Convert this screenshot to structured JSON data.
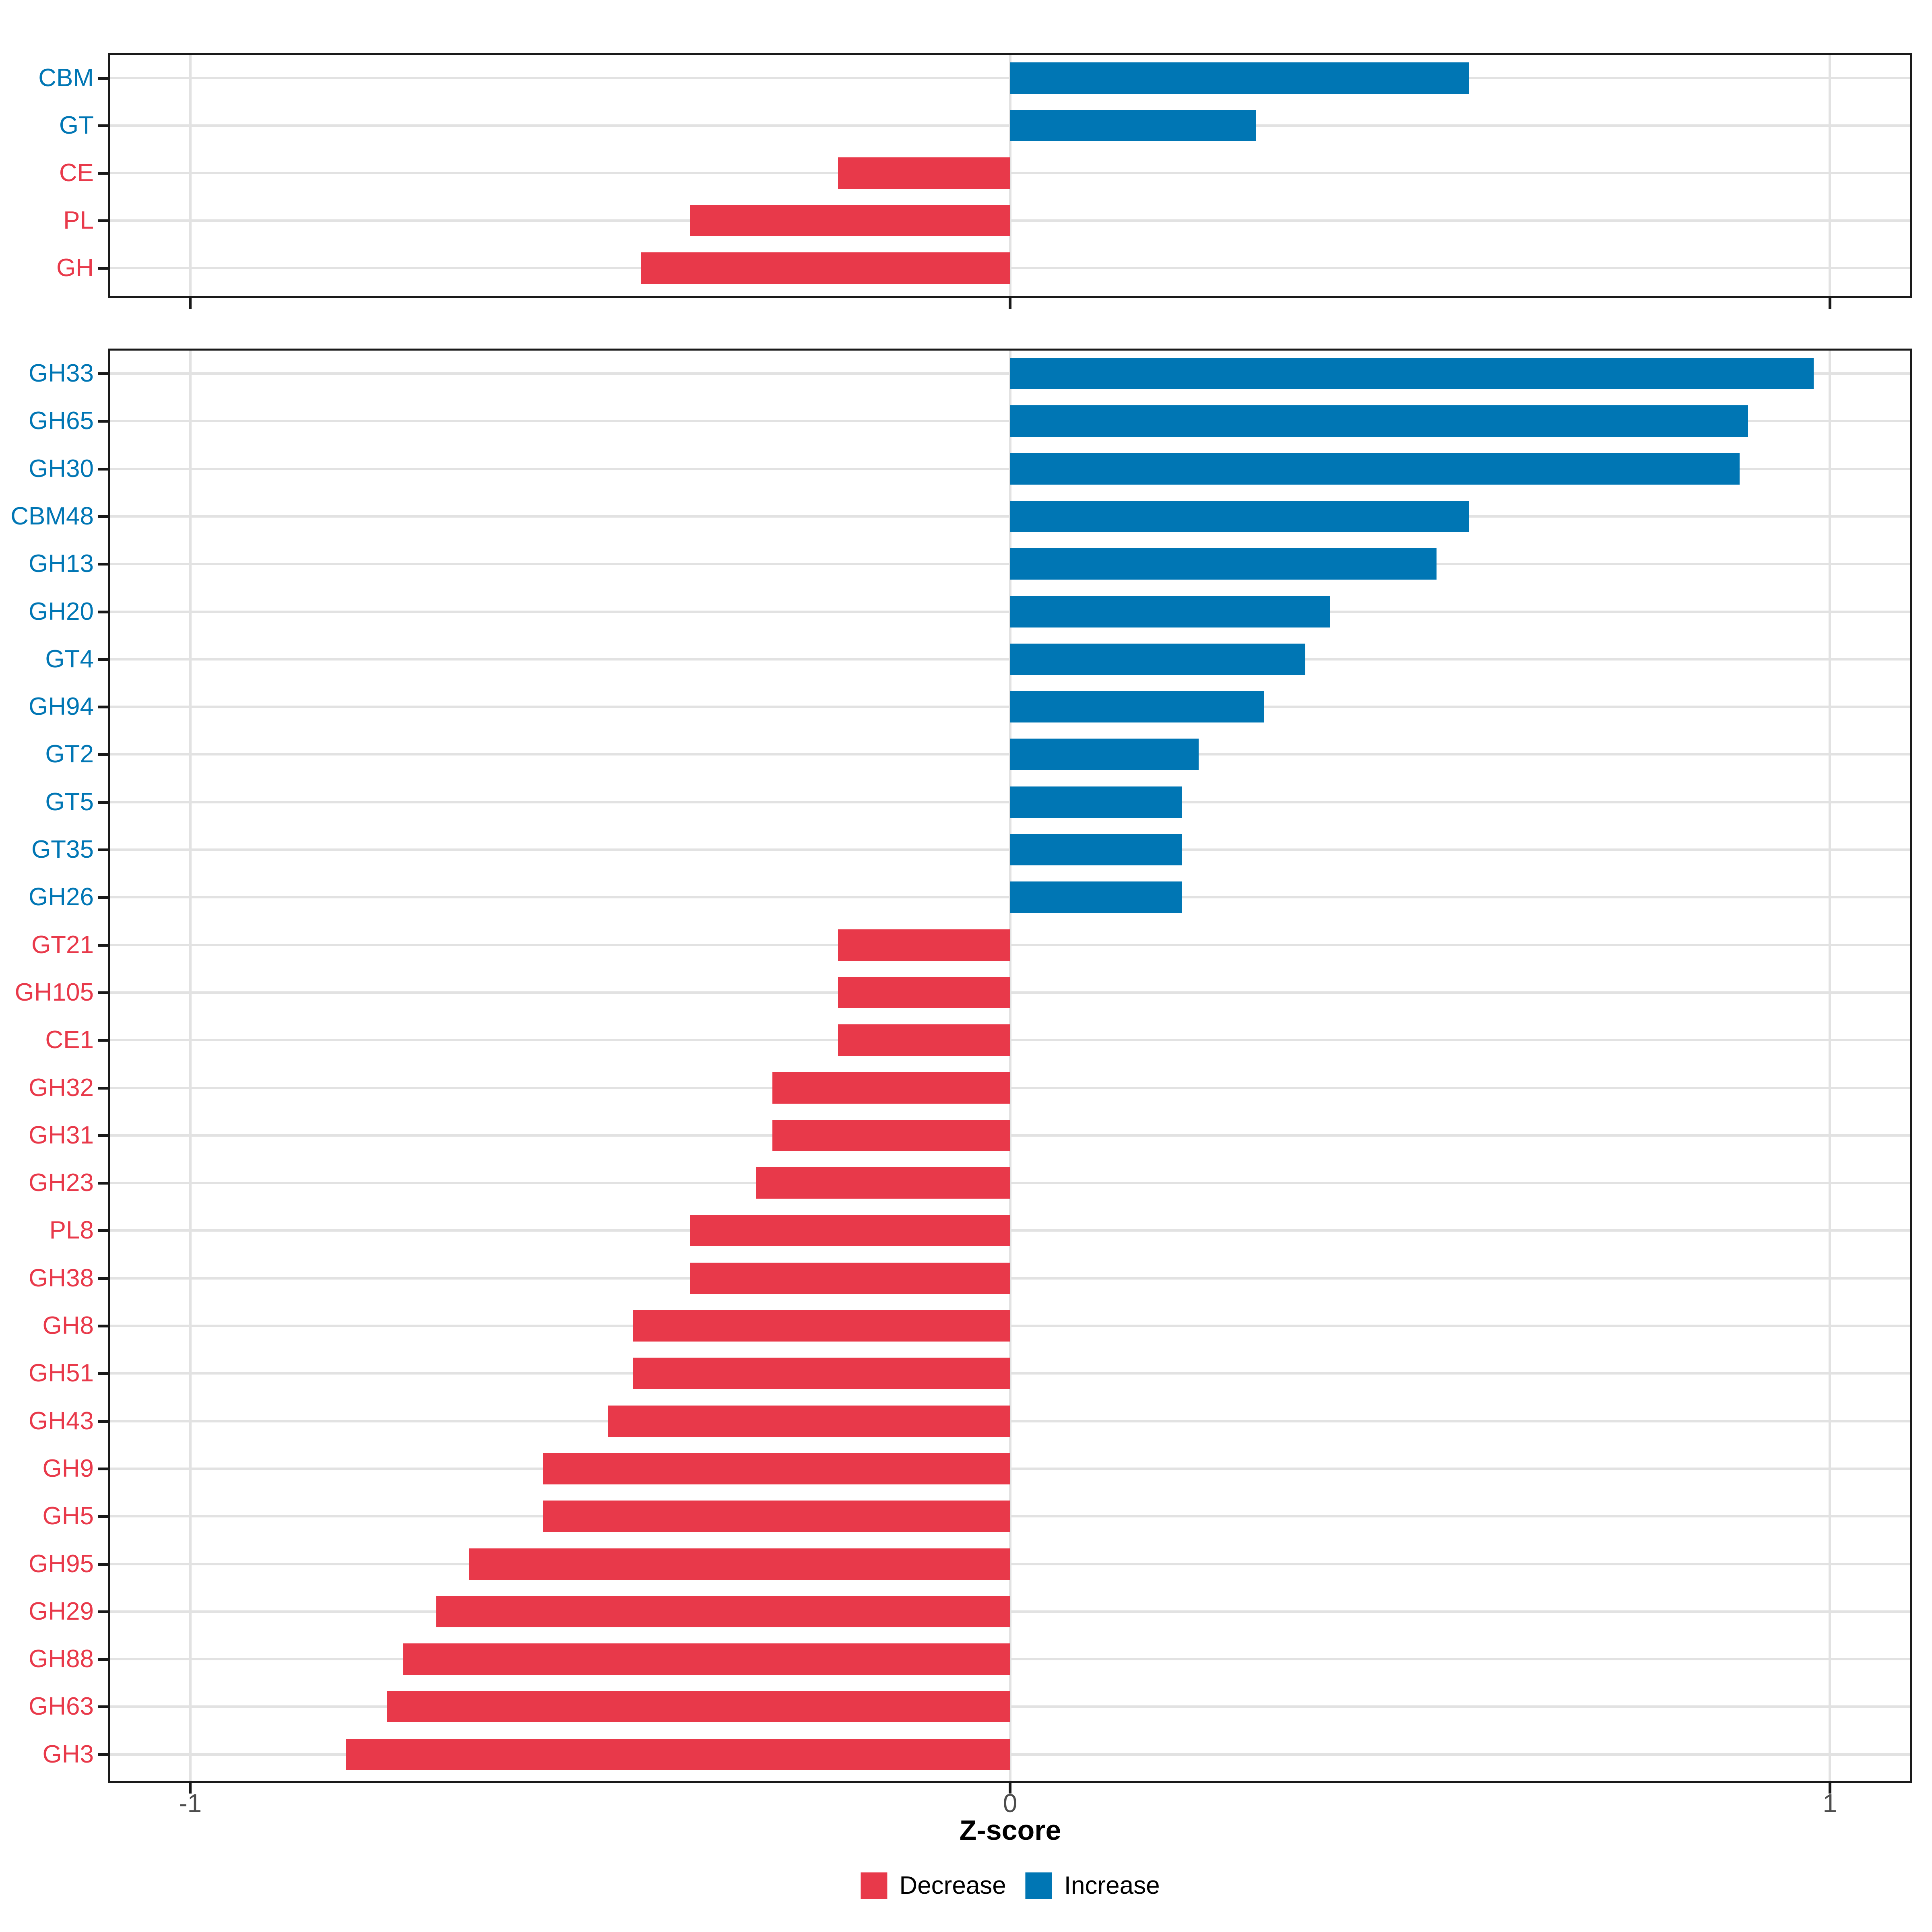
{
  "axis": {
    "title": "Z-score",
    "tick_labels": [
      "-1",
      "0",
      "1"
    ],
    "tick_values": [
      -1,
      0,
      1
    ],
    "xlim": [
      -1.1,
      1.1
    ]
  },
  "legend": {
    "items": [
      {
        "label": "Decrease",
        "color": "#E8394A"
      },
      {
        "label": "Increase",
        "color": "#0076B4"
      }
    ]
  },
  "colors": {
    "decrease": "#E8394A",
    "increase": "#0076B4",
    "gridline": "#E2E2E2",
    "panel_border": "#1A1A1A",
    "axis_text": "#4D4D4D"
  },
  "chart_data": [
    {
      "type": "bar",
      "orientation": "horizontal",
      "panel": "cazyme-classes",
      "title": "",
      "xlabel": "Z-score",
      "ylabel": "",
      "xlim": [
        -1.1,
        1.1
      ],
      "xticks": [
        -1,
        0,
        1
      ],
      "grid": true,
      "legend_position": "bottom",
      "categories": [
        "CBM",
        "GT",
        "CE",
        "PL",
        "GH"
      ],
      "values": [
        0.56,
        0.3,
        -0.21,
        -0.39,
        -0.45
      ],
      "directions": [
        "Increase",
        "Increase",
        "Decrease",
        "Decrease",
        "Decrease"
      ]
    },
    {
      "type": "bar",
      "orientation": "horizontal",
      "panel": "cazyme-families",
      "title": "",
      "xlabel": "Z-score",
      "ylabel": "",
      "xlim": [
        -1.1,
        1.1
      ],
      "xticks": [
        -1,
        0,
        1
      ],
      "grid": true,
      "legend_position": "bottom",
      "categories": [
        "GH33",
        "GH65",
        "GH30",
        "CBM48",
        "GH13",
        "GH20",
        "GT4",
        "GH94",
        "GT2",
        "GT5",
        "GT35",
        "GH26",
        "GT21",
        "GH105",
        "CE1",
        "GH32",
        "GH31",
        "GH23",
        "PL8",
        "GH38",
        "GH8",
        "GH51",
        "GH43",
        "GH9",
        "GH5",
        "GH95",
        "GH29",
        "GH88",
        "GH63",
        "GH3"
      ],
      "values": [
        0.98,
        0.9,
        0.89,
        0.56,
        0.52,
        0.39,
        0.36,
        0.31,
        0.23,
        0.21,
        0.21,
        0.21,
        -0.21,
        -0.21,
        -0.21,
        -0.29,
        -0.29,
        -0.31,
        -0.39,
        -0.39,
        -0.46,
        -0.46,
        -0.49,
        -0.57,
        -0.57,
        -0.66,
        -0.7,
        -0.74,
        -0.76,
        -0.81
      ],
      "directions": [
        "Increase",
        "Increase",
        "Increase",
        "Increase",
        "Increase",
        "Increase",
        "Increase",
        "Increase",
        "Increase",
        "Increase",
        "Increase",
        "Increase",
        "Decrease",
        "Decrease",
        "Decrease",
        "Decrease",
        "Decrease",
        "Decrease",
        "Decrease",
        "Decrease",
        "Decrease",
        "Decrease",
        "Decrease",
        "Decrease",
        "Decrease",
        "Decrease",
        "Decrease",
        "Decrease",
        "Decrease",
        "Decrease"
      ]
    }
  ]
}
